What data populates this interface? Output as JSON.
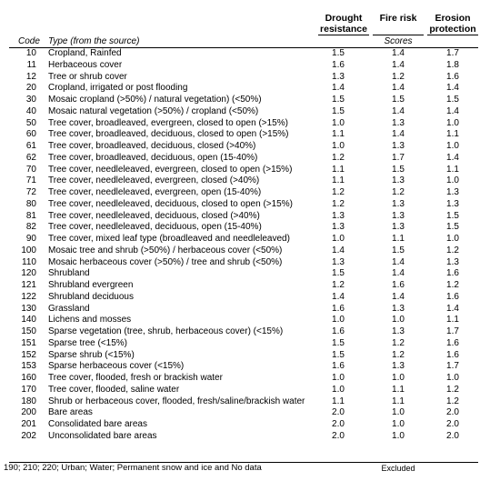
{
  "columns": {
    "drought": [
      "Drought",
      "resistance"
    ],
    "fire": [
      "Fire risk"
    ],
    "erosion": [
      "Erosion",
      "protection"
    ],
    "code": "Code",
    "type": "Type (from the source)",
    "scores": "Scores"
  },
  "rows": [
    {
      "code": "10",
      "type": "Cropland, Rainfed",
      "drought": "1.5",
      "fire": "1.4",
      "erosion": "1.7"
    },
    {
      "code": "11",
      "type": "Herbaceous cover",
      "drought": "1.6",
      "fire": "1.4",
      "erosion": "1.8"
    },
    {
      "code": "12",
      "type": "Tree or shrub cover",
      "drought": "1.3",
      "fire": "1.2",
      "erosion": "1.6"
    },
    {
      "code": "20",
      "type": "Cropland, irrigated or post flooding",
      "drought": "1.4",
      "fire": "1.4",
      "erosion": "1.4"
    },
    {
      "code": "30",
      "type": "Mosaic cropland (>50%) / natural vegetation) (<50%)",
      "drought": "1.5",
      "fire": "1.5",
      "erosion": "1.5"
    },
    {
      "code": "40",
      "type": "Mosaic natural vegetation (>50%) / cropland (<50%)",
      "drought": "1.5",
      "fire": "1.4",
      "erosion": "1.4"
    },
    {
      "code": "50",
      "type": "Tree cover, broadleaved, evergreen, closed to open (>15%)",
      "drought": "1.0",
      "fire": "1.3",
      "erosion": "1.0"
    },
    {
      "code": "60",
      "type": "Tree cover, broadleaved, deciduous, closed to open (>15%)",
      "drought": "1.1",
      "fire": "1.4",
      "erosion": "1.1"
    },
    {
      "code": "61",
      "type": "Tree cover, broadleaved, deciduous, closed (>40%)",
      "drought": "1.0",
      "fire": "1.3",
      "erosion": "1.0"
    },
    {
      "code": "62",
      "type": "Tree cover, broadleaved, deciduous, open (15-40%)",
      "drought": "1.2",
      "fire": "1.7",
      "erosion": "1.4"
    },
    {
      "code": "70",
      "type": "Tree cover, needleleaved, evergreen, closed to open (>15%)",
      "drought": "1.1",
      "fire": "1.5",
      "erosion": "1.1"
    },
    {
      "code": "71",
      "type": "Tree cover, needleleaved, evergreen, closed (>40%)",
      "drought": "1.1",
      "fire": "1.3",
      "erosion": "1.0"
    },
    {
      "code": "72",
      "type": "Tree cover, needleleaved, evergreen, open (15-40%)",
      "drought": "1.2",
      "fire": "1.2",
      "erosion": "1.3"
    },
    {
      "code": "80",
      "type": "Tree cover, needleleaved, deciduous, closed to open (>15%)",
      "drought": "1.2",
      "fire": "1.3",
      "erosion": "1.3"
    },
    {
      "code": "81",
      "type": "Tree cover, needleleaved, deciduous, closed (>40%)",
      "drought": "1.3",
      "fire": "1.3",
      "erosion": "1.5"
    },
    {
      "code": "82",
      "type": "Tree cover, needleleaved, deciduous, open (15-40%)",
      "drought": "1.3",
      "fire": "1.3",
      "erosion": "1.5"
    },
    {
      "code": "90",
      "type": "Tree cover, mixed leaf type (broadleaved and needleleaved)",
      "drought": "1.0",
      "fire": "1.1",
      "erosion": "1.0"
    },
    {
      "code": "100",
      "type": "Mosaic tree and shrub (>50%) / herbaceous cover (<50%)",
      "drought": "1.4",
      "fire": "1.5",
      "erosion": "1.2"
    },
    {
      "code": "110",
      "type": "Mosaic herbaceous cover (>50%) / tree and shrub (<50%)",
      "drought": "1.3",
      "fire": "1.4",
      "erosion": "1.3"
    },
    {
      "code": "120",
      "type": "Shrubland",
      "drought": "1.5",
      "fire": "1.4",
      "erosion": "1.6"
    },
    {
      "code": "121",
      "type": "Shrubland evergreen",
      "drought": "1.2",
      "fire": "1.6",
      "erosion": "1.2"
    },
    {
      "code": "122",
      "type": "Shrubland deciduous",
      "drought": "1.4",
      "fire": "1.4",
      "erosion": "1.6"
    },
    {
      "code": "130",
      "type": "Grassland",
      "drought": "1.6",
      "fire": "1.3",
      "erosion": "1.4"
    },
    {
      "code": "140",
      "type": "Lichens and mosses",
      "drought": "1.0",
      "fire": "1.0",
      "erosion": "1.1"
    },
    {
      "code": "150",
      "type": "Sparse vegetation (tree, shrub, herbaceous cover) (<15%)",
      "drought": "1.6",
      "fire": "1.3",
      "erosion": "1.7"
    },
    {
      "code": "151",
      "type": "Sparse tree (<15%)",
      "drought": "1.5",
      "fire": "1.2",
      "erosion": "1.6"
    },
    {
      "code": "152",
      "type": "Sparse shrub (<15%)",
      "drought": "1.5",
      "fire": "1.2",
      "erosion": "1.6"
    },
    {
      "code": "153",
      "type": "Sparse herbaceous cover (<15%)",
      "drought": "1.6",
      "fire": "1.3",
      "erosion": "1.7"
    },
    {
      "code": "160",
      "type": "Tree cover, flooded, fresh or brackish water",
      "drought": "1.0",
      "fire": "1.0",
      "erosion": "1.0"
    },
    {
      "code": "170",
      "type": "Tree cover, flooded, saline water",
      "drought": "1.0",
      "fire": "1.1",
      "erosion": "1.2"
    },
    {
      "code": "180",
      "type": "Shrub or herbaceous cover, flooded, fresh/saline/brackish water",
      "drought": "1.1",
      "fire": "1.1",
      "erosion": "1.2"
    },
    {
      "code": "200",
      "type": "Bare areas",
      "drought": "2.0",
      "fire": "1.0",
      "erosion": "2.0"
    },
    {
      "code": "201",
      "type": "Consolidated bare areas",
      "drought": "2.0",
      "fire": "1.0",
      "erosion": "2.0"
    },
    {
      "code": "202",
      "type": "Unconsolidated bare areas",
      "drought": "2.0",
      "fire": "1.0",
      "erosion": "2.0"
    }
  ],
  "footer": {
    "note": "190; 210; 220; Urban; Water; Permanent snow and ice and No data",
    "status": "Excluded"
  }
}
